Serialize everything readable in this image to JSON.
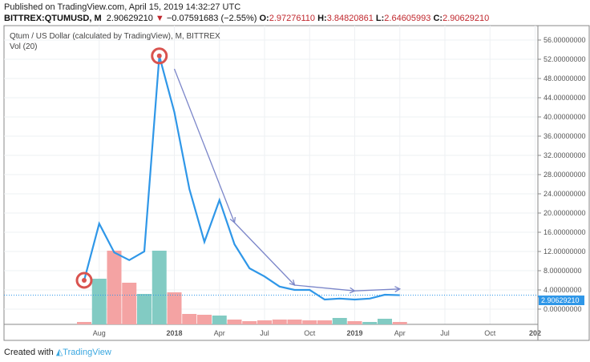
{
  "header": {
    "published": "Published on TradingView.com, April 15, 2019 14:32:27 UTC",
    "symbol": "BITTREX:QTUMUSD, M",
    "last": "2.90629210",
    "change": "−0.07591683 (−2.55%)",
    "o_label": "O:",
    "o": "2.97276110",
    "h_label": "H:",
    "h": "3.84820861",
    "l_label": "L:",
    "l": "2.64605993",
    "c_label": "C:",
    "c": "2.90629210"
  },
  "footer": {
    "created": "Created with",
    "brand": "TradingView"
  },
  "colors": {
    "line": "#2f97e8",
    "up": "#82cbc3",
    "down": "#f4a3a3",
    "annot": "#d9534f",
    "arrow": "#7b86c9"
  },
  "chart_data": {
    "type": "line",
    "title": "Qtum / US Dollar (calculated by TradingView), M, BITTREX",
    "indicator": "Vol (20)",
    "ylim": [
      -4,
      58
    ],
    "yticks": [
      "56.00000000",
      "52.00000000",
      "48.00000000",
      "44.00000000",
      "40.00000000",
      "36.00000000",
      "32.00000000",
      "28.00000000",
      "24.00000000",
      "20.00000000",
      "16.00000000",
      "12.00000000",
      "8.00000000",
      "4.00000000",
      "0.00000000"
    ],
    "ytick_values": [
      56,
      52,
      48,
      44,
      40,
      36,
      32,
      28,
      24,
      20,
      16,
      12,
      8,
      4,
      0
    ],
    "xticks": [
      "Aug",
      "2018",
      "Apr",
      "Jul",
      "Oct",
      "2019",
      "Apr",
      "Jul",
      "Oct",
      "202"
    ],
    "xtick_months": [
      1,
      6,
      9,
      12,
      15,
      18,
      21,
      24,
      27,
      30
    ],
    "current_price_label": "2.90629210",
    "current_price": 2.9063,
    "months": [
      "2017-07",
      "2017-08",
      "2017-09",
      "2017-10",
      "2017-11",
      "2017-12",
      "2018-01",
      "2018-02",
      "2018-03",
      "2018-04",
      "2018-05",
      "2018-06",
      "2018-07",
      "2018-08",
      "2018-09",
      "2018-10",
      "2018-11",
      "2018-12",
      "2019-01",
      "2019-02",
      "2019-03",
      "2019-04"
    ],
    "close": [
      6,
      17.8,
      11.8,
      10.2,
      12,
      52.7,
      41,
      25,
      14,
      22.7,
      13.5,
      8.5,
      6.8,
      4.7,
      4,
      4,
      2,
      2.2,
      2,
      2.2,
      3,
      2.91
    ],
    "volume_rel": [
      3,
      57,
      92,
      52,
      38,
      92,
      40,
      13,
      12,
      11,
      6,
      4,
      5,
      6,
      6,
      5,
      5,
      8,
      4,
      3,
      7,
      3
    ],
    "volume_up": [
      false,
      true,
      false,
      false,
      true,
      true,
      false,
      false,
      false,
      true,
      false,
      false,
      false,
      false,
      false,
      false,
      false,
      true,
      false,
      true,
      true,
      false
    ],
    "annotations": {
      "circles": [
        [
          0,
          6
        ],
        [
          5,
          52.7
        ]
      ],
      "arrows": [
        [
          [
            6,
            50
          ],
          [
            10,
            18
          ]
        ],
        [
          [
            10,
            18
          ],
          [
            14,
            5
          ]
        ],
        [
          [
            14,
            5
          ],
          [
            18,
            3.8
          ]
        ],
        [
          [
            18,
            3.8
          ],
          [
            21,
            4.2
          ]
        ]
      ]
    }
  }
}
